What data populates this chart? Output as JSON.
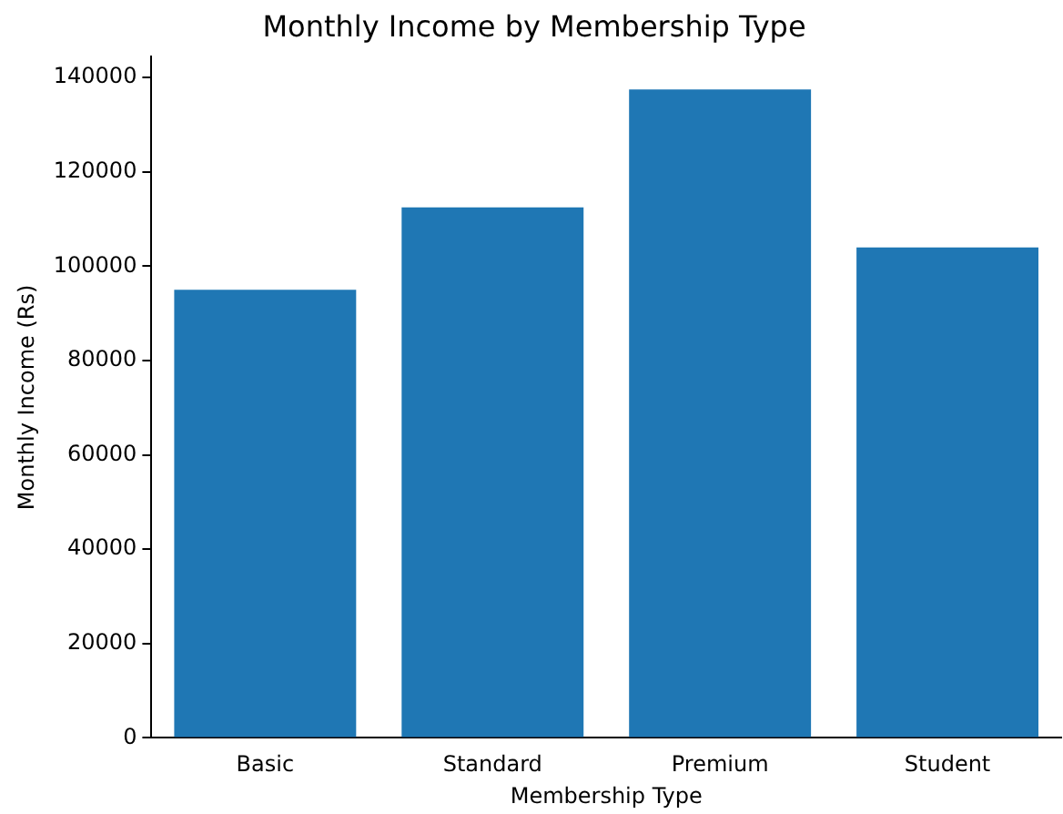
{
  "chart_data": {
    "type": "bar",
    "title": "Monthly Income by Membership Type",
    "xlabel": "Membership Type",
    "ylabel": "Monthly Income (Rs)",
    "categories": [
      "Basic",
      "Standard",
      "Premium",
      "Student"
    ],
    "values": [
      95000,
      112500,
      137500,
      104000
    ],
    "color": "#1f77b4",
    "ylim": [
      0,
      144400
    ],
    "yticks": [
      0,
      20000,
      40000,
      60000,
      80000,
      100000,
      120000,
      140000
    ],
    "grid": false,
    "legend": false
  }
}
